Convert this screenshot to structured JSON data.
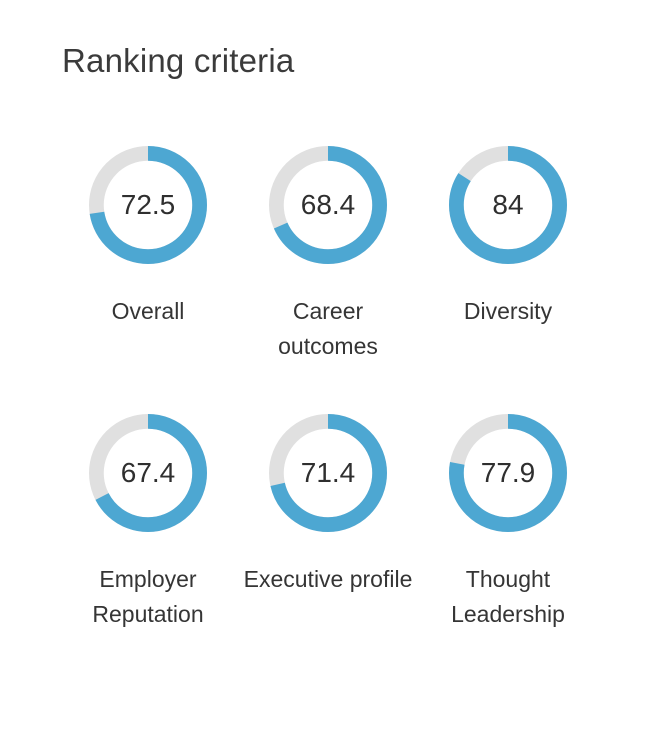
{
  "page": {
    "background": "#ffffff"
  },
  "chart_data": {
    "type": "donut",
    "title": "Ranking criteria",
    "value_range": [
      0,
      100
    ],
    "ring_color": "#4da7d2",
    "track_color": "#e0e0e0",
    "legend_position": "below-each-ring",
    "items": [
      {
        "label": "Overall",
        "value": 72.5
      },
      {
        "label": "Career outcomes",
        "value": 68.4
      },
      {
        "label": "Diversity",
        "value": 84
      },
      {
        "label": "Employer Reputation",
        "value": 67.4
      },
      {
        "label": "Executive profile",
        "value": 71.4
      },
      {
        "label": "Thought Leadership",
        "value": 77.9
      }
    ]
  }
}
